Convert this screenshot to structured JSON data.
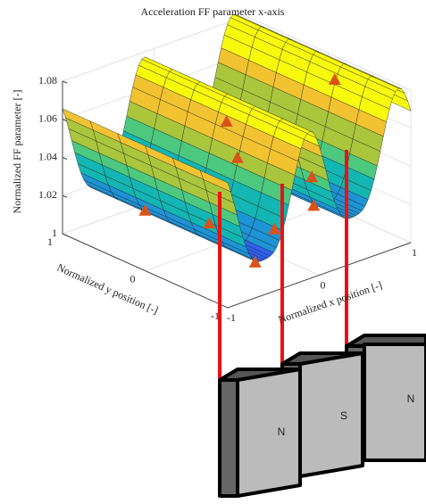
{
  "chart_data": {
    "type": "surface",
    "title": "Acceleration FF parameter x-axis",
    "xlabel": "Normalized x position [-]",
    "ylabel": "Normalized y position [-]",
    "zlabel": "Normalized FF parameter [-]",
    "xlim": [
      -1,
      1
    ],
    "xticks": [
      -1,
      0,
      1
    ],
    "ylim": [
      -1,
      1
    ],
    "yticks": [
      -1,
      0,
      1
    ],
    "zlim": [
      1,
      1.08
    ],
    "zticks": [
      1,
      1.02,
      1.04,
      1.06,
      1.08
    ],
    "grid": true,
    "annotations": [
      "N",
      "S",
      "N"
    ]
  }
}
